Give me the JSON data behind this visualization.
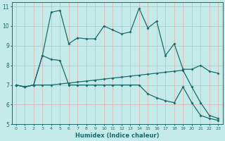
{
  "xlabel": "Humidex (Indice chaleur)",
  "xlim": [
    -0.5,
    23.5
  ],
  "ylim": [
    5,
    11.2
  ],
  "yticks": [
    5,
    6,
    7,
    8,
    9,
    10,
    11
  ],
  "xticks": [
    0,
    1,
    2,
    3,
    4,
    5,
    6,
    7,
    8,
    9,
    10,
    11,
    12,
    13,
    14,
    15,
    16,
    17,
    18,
    19,
    20,
    21,
    22,
    23
  ],
  "background_color": "#c5eaea",
  "grid_color": "#ddb8b8",
  "line_color": "#1a6b6b",
  "line1_x": [
    0,
    1,
    2,
    3,
    4,
    5,
    6,
    7,
    8,
    9,
    10,
    11,
    12,
    13,
    14,
    15,
    16,
    17,
    18,
    19,
    20,
    21,
    22,
    23
  ],
  "line1_y": [
    7.0,
    6.9,
    7.0,
    8.5,
    10.7,
    10.8,
    9.1,
    9.4,
    9.35,
    9.35,
    10.0,
    9.8,
    9.6,
    9.7,
    10.9,
    9.9,
    10.25,
    8.5,
    9.1,
    7.8,
    7.8,
    8.0,
    7.7,
    7.6
  ],
  "line2_x": [
    0,
    1,
    2,
    3,
    4,
    5,
    6,
    7,
    8,
    9,
    10,
    11,
    12,
    13,
    14,
    15,
    16,
    17,
    18,
    19,
    20,
    21,
    22,
    23
  ],
  "line2_y": [
    7.0,
    6.9,
    7.0,
    8.5,
    8.3,
    8.25,
    7.0,
    7.0,
    7.0,
    7.0,
    7.0,
    7.0,
    7.0,
    7.0,
    7.0,
    6.55,
    6.35,
    6.2,
    6.1,
    6.9,
    6.1,
    5.45,
    5.3,
    5.2
  ],
  "line3_x": [
    0,
    1,
    2,
    3,
    4,
    5,
    6,
    7,
    8,
    9,
    10,
    11,
    12,
    13,
    14,
    15,
    16,
    17,
    18,
    19,
    20,
    21,
    22,
    23
  ],
  "line3_y": [
    7.0,
    6.9,
    7.0,
    7.0,
    7.0,
    7.05,
    7.1,
    7.15,
    7.2,
    7.25,
    7.3,
    7.35,
    7.4,
    7.45,
    7.5,
    7.55,
    7.6,
    7.65,
    7.7,
    7.75,
    6.9,
    6.1,
    5.45,
    5.3
  ]
}
